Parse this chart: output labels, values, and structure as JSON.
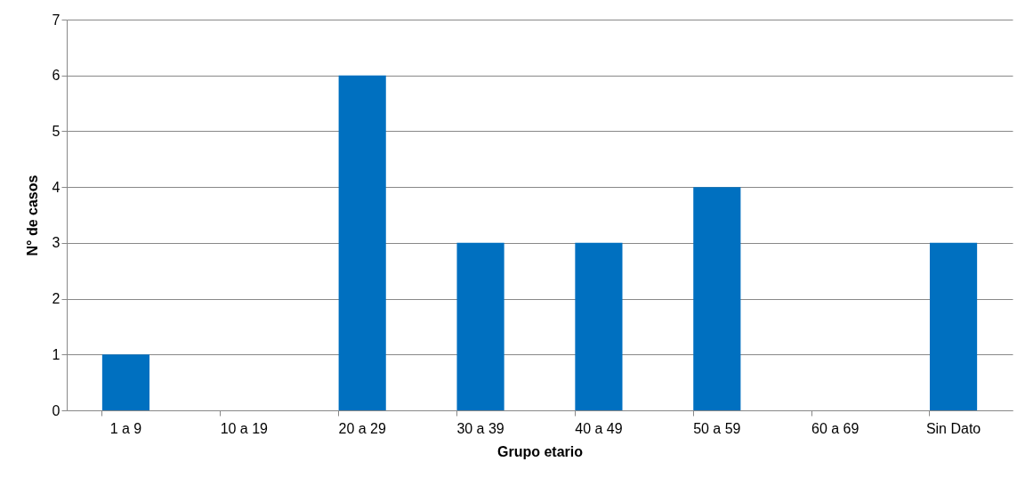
{
  "chart_data": {
    "type": "bar",
    "xlabel": "Grupo etario",
    "ylabel": "N° de casos",
    "categories": [
      "1 a 9",
      "10 a 19",
      "20 a 29",
      "30 a 39",
      "40 a 49",
      "50 a 59",
      "60 a 69",
      "Sin Dato"
    ],
    "values": [
      1,
      0,
      6,
      3,
      3,
      4,
      0,
      3
    ],
    "color": "#0070c0",
    "ylim": [
      0,
      7
    ],
    "yticks": [
      0,
      1,
      2,
      3,
      4,
      5,
      6,
      7
    ],
    "grid": "y"
  }
}
